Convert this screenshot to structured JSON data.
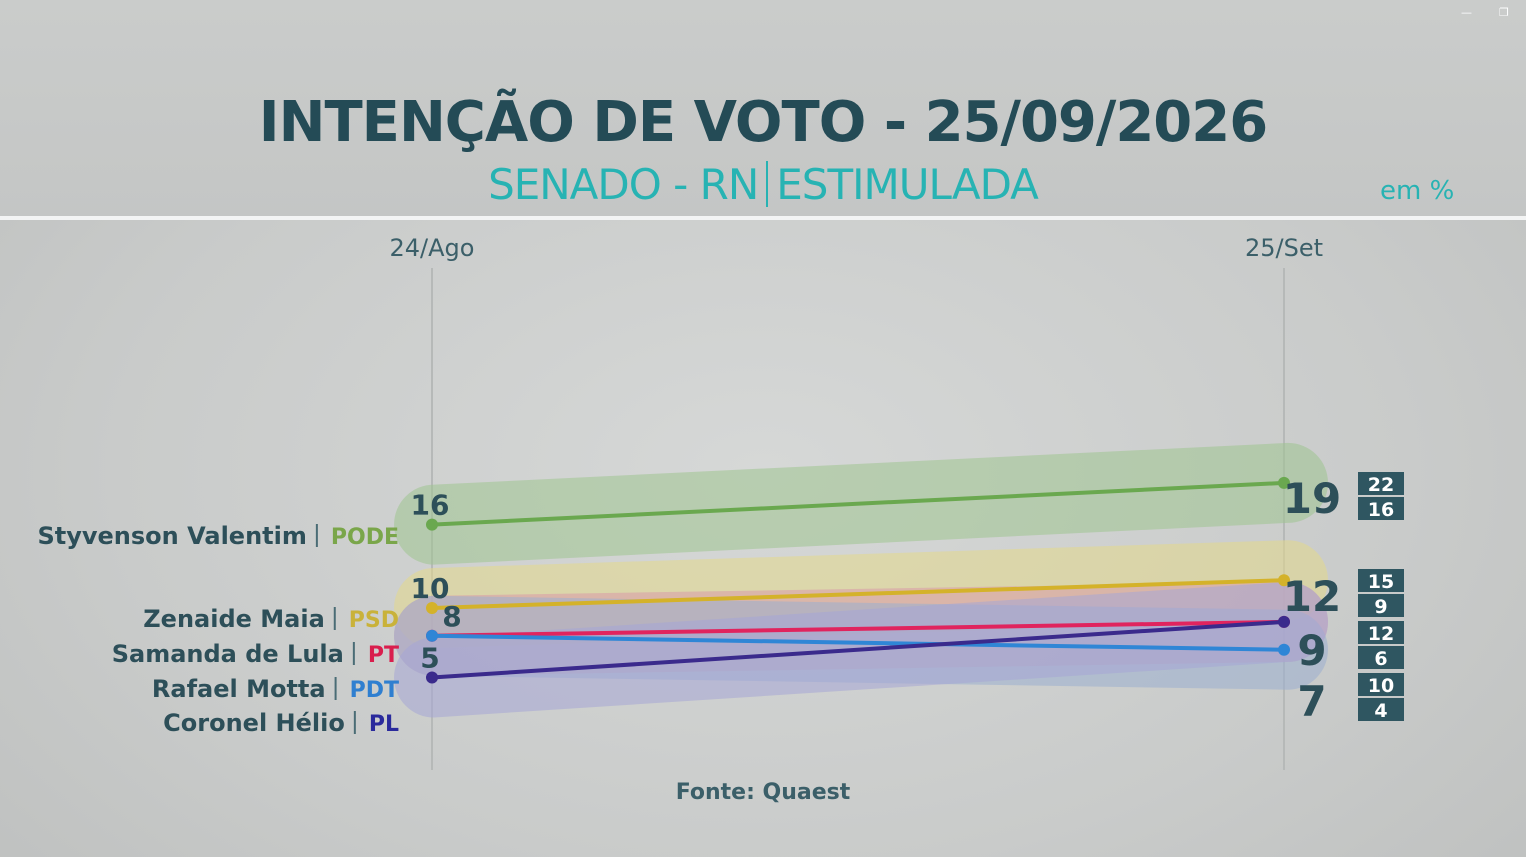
{
  "window_controls": {
    "minimize": "—",
    "restore": "❐"
  },
  "header": {
    "title": "INTENÇÃO DE VOTO - 25/09/2026",
    "subtitle_left": "SENADO - RN",
    "subtitle_right": "ESTIMULADA",
    "unit": "em %"
  },
  "source": "Fonte: Quaest",
  "chart_data": {
    "type": "line",
    "categories": [
      "24/Ago",
      "25/Set"
    ],
    "series": [
      {
        "name": "Styvenson Valentim",
        "party": "PODE",
        "values": [
          16,
          19
        ],
        "range": [
          22,
          16
        ],
        "color": "#6aa84f",
        "band": "#9fc48f",
        "party_color": "#7aa64a"
      },
      {
        "name": "Zenaide Maia",
        "party": "PSD",
        "values": [
          10,
          12
        ],
        "range": [
          15,
          9
        ],
        "color": "#d4b22a",
        "band": "#e4d98a",
        "party_color": "#c9b23a"
      },
      {
        "name": "Samanda de Lula",
        "party": "PT",
        "values": [
          8,
          9
        ],
        "range": [
          12,
          6
        ],
        "color": "#e0245e",
        "band": "#d89aa8",
        "party_color": "#d91e4d"
      },
      {
        "name": "Rafael Motta",
        "party": "PDT",
        "values": [
          8,
          7
        ],
        "range": [
          10,
          4
        ],
        "color": "#2f86d6",
        "band": "#9aaed0",
        "party_color": "#2f7fd0"
      },
      {
        "name": "Coronel Hélio",
        "party": "PL",
        "values": [
          5,
          9
        ],
        "range": [],
        "color": "#3a2a8c",
        "band": "#a6a6d6",
        "party_color": "#2a2a9c"
      }
    ],
    "colors": {
      "label_dark": "#2d4f59",
      "value_text": "#2d4f59",
      "box_bg": "#2f5661"
    }
  }
}
